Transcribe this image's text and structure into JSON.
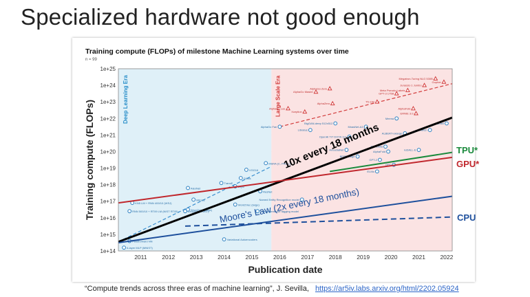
{
  "slide": {
    "title": "Specialized hardware not good enough",
    "citation_text": "“Compute trends across three eras of machine learning”, J. Sevilla,",
    "citation_link": "https://ar5iv.labs.arxiv.org/html/2202.05924"
  },
  "chart_data": {
    "type": "scatter",
    "title": "Training compute (FLOPs) of milestone Machine Learning systems over time",
    "subtitle": "n = 99",
    "xlabel": "Publication date",
    "ylabel": "Training compute (FLOPs)",
    "x_ticks": [
      "2011",
      "2012",
      "2013",
      "2014",
      "2015",
      "2016",
      "2017",
      "2018",
      "2019",
      "2020",
      "2021",
      "2022"
    ],
    "y_ticks": [
      "1e+14",
      "1e+15",
      "1e+16",
      "1e+17",
      "1e+18",
      "1e+19",
      "1e+20",
      "1e+21",
      "1e+22",
      "1e+23",
      "1e+24",
      "1e+25"
    ],
    "xlim": [
      2010.2,
      2022.2
    ],
    "ylim_log10": [
      14,
      25
    ],
    "eras": [
      {
        "name": "Deep Learning Era",
        "x_range": [
          2010.2,
          2015.7
        ],
        "color": "#dff0f8"
      },
      {
        "name": "Large Scale Era",
        "x_range": [
          2015.7,
          2022.2
        ],
        "color": "#fbe3e3"
      }
    ],
    "points_deep_learning": [
      {
        "x": 2010.4,
        "y": 14.2,
        "label": "6-layer MLP (MNIST)"
      },
      {
        "x": 2010.6,
        "y": 14.6,
        "label": "Feedforward NN"
      },
      {
        "x": 2010.6,
        "y": 16.4,
        "label": "RNN 500/10 + RT09 LM (NIST RT05)"
      },
      {
        "x": 2010.7,
        "y": 16.9,
        "label": "KN5 LM + RNN 400/10 (WSJ)"
      },
      {
        "x": 2012.6,
        "y": 16.4,
        "label": "Dropout (MNIST)"
      },
      {
        "x": 2012.7,
        "y": 16.5,
        "label": "Word2Vec (large)"
      },
      {
        "x": 2012.9,
        "y": 17.1,
        "label": "Mitosis"
      },
      {
        "x": 2012.7,
        "y": 17.8,
        "label": "AlexNet"
      },
      {
        "x": 2013.9,
        "y": 18.1,
        "label": "TransE"
      },
      {
        "x": 2014.4,
        "y": 17.9,
        "label": "DQN"
      },
      {
        "x": 2014.4,
        "y": 16.8,
        "label": "Word2Vec (large)"
      },
      {
        "x": 2014.6,
        "y": 18.4,
        "label": "GANs"
      },
      {
        "x": 2014.8,
        "y": 18.9,
        "label": "VGG16"
      },
      {
        "x": 2014.0,
        "y": 14.7,
        "label": "Variational Autoencoders"
      },
      {
        "x": 2015.2,
        "y": 16.4,
        "label": "Part-of-sentence tagging model"
      },
      {
        "x": 2015.3,
        "y": 17.6,
        "label": "ResNet"
      },
      {
        "x": 2015.5,
        "y": 19.3,
        "label": "MSRA (C, PReLU)"
      }
    ],
    "points_large_scale": [
      {
        "x": 2016.0,
        "y": 21.5,
        "label": "AlphaGo Fan"
      },
      {
        "x": 2016.3,
        "y": 22.6,
        "label": "AlphaGo Lee"
      },
      {
        "x": 2017.3,
        "y": 23.6,
        "label": "AlphaGo Master"
      },
      {
        "x": 2017.8,
        "y": 23.8,
        "label": "AlphaGo Zero"
      },
      {
        "x": 2017.9,
        "y": 22.9,
        "label": "AlphaZero"
      },
      {
        "x": 2016.9,
        "y": 22.4,
        "label": "Xception"
      },
      {
        "x": 2017.1,
        "y": 21.3,
        "label": "Libratus"
      },
      {
        "x": 2018.0,
        "y": 21.7,
        "label": "BigGAN-deep 512x512"
      },
      {
        "x": 2018.5,
        "y": 20.9,
        "label": "OpenAI TI7 DOTA 1v1"
      },
      {
        "x": 2019.1,
        "y": 21.5,
        "label": "MnasNet-A3"
      },
      {
        "x": 2019.5,
        "y": 23.0,
        "label": "T5-11B"
      },
      {
        "x": 2020.2,
        "y": 23.5,
        "label": "GPT-3 175B"
      },
      {
        "x": 2020.6,
        "y": 23.7,
        "label": "Meta Pseudo Labels"
      },
      {
        "x": 2021.2,
        "y": 24.0,
        "label": "Jurassic-1 Jumbo"
      },
      {
        "x": 2021.6,
        "y": 24.4,
        "label": "Megatron-Turing NLG 530B"
      },
      {
        "x": 2021.9,
        "y": 24.2,
        "label": "Gopher"
      },
      {
        "x": 2020.8,
        "y": 22.6,
        "label": "AlphaFold"
      },
      {
        "x": 2020.9,
        "y": 22.3,
        "label": "ERNIE 3.0"
      },
      {
        "x": 2020.2,
        "y": 22.0,
        "label": "Meena"
      },
      {
        "x": 2020.5,
        "y": 21.1,
        "label": "ALBERT-xxlarge"
      },
      {
        "x": 2019.8,
        "y": 20.3,
        "label": "Chinchilla"
      },
      {
        "x": 2019.6,
        "y": 19.5,
        "label": "GPT-2"
      },
      {
        "x": 2018.8,
        "y": 19.7,
        "label": "BERT-Large"
      },
      {
        "x": 2018.4,
        "y": 20.1,
        "label": "AmoebaNet"
      },
      {
        "x": 2019.9,
        "y": 20.0,
        "label": "AlphaFold"
      },
      {
        "x": 2021.0,
        "y": 20.1,
        "label": "ruDALL-E"
      },
      {
        "x": 2021.4,
        "y": 21.3,
        "label": "Switch"
      },
      {
        "x": 2022.0,
        "y": 21.7,
        "label": "GLaM"
      },
      {
        "x": 2020.1,
        "y": 19.2,
        "label": "GPT"
      },
      {
        "x": 2019.5,
        "y": 18.8,
        "label": "ELMo"
      },
      {
        "x": 2016.8,
        "y": 17.1,
        "label": "Named Entity Recognition model"
      }
    ],
    "trend_lines": [
      {
        "name": "10x every 18 months",
        "color": "#000000",
        "style": "solid",
        "x": [
          2010.2,
          2022.2
        ],
        "y": [
          14.55,
          22.05
        ]
      },
      {
        "name": "Moore's Law (2x every 18 months)",
        "color": "#1d4f9c",
        "style": "solid",
        "x": [
          2010.2,
          2022.2
        ],
        "y": [
          14.5,
          17.3
        ]
      },
      {
        "name": "GPU*",
        "color": "#c0272d",
        "style": "solid",
        "x": [
          2010.2,
          2022.2
        ],
        "y": [
          16.9,
          19.65
        ]
      },
      {
        "name": "TPU*",
        "color": "#1a8a3c",
        "style": "solid",
        "x": [
          2017.8,
          2022.2
        ],
        "y": [
          18.8,
          19.95
        ]
      },
      {
        "name": "CPU",
        "color": "#1d4f9c",
        "style": "dashed",
        "x": [
          2012.6,
          2022.2
        ],
        "y": [
          15.5,
          16.05
        ]
      }
    ],
    "era_fit_lines": [
      {
        "name": "Deep Learning trend",
        "color": "#3a8fd0",
        "style": "dashed",
        "x": [
          2010.2,
          2015.7
        ],
        "y": [
          14.55,
          19.1
        ]
      },
      {
        "name": "Large Scale trend",
        "color": "#d23a3a",
        "style": "dashed",
        "x": [
          2016.0,
          2022.2
        ],
        "y": [
          21.5,
          24.1
        ]
      }
    ],
    "annotations": [
      {
        "text": "10x every 18 months",
        "color": "#000000"
      },
      {
        "text": "Moore's Law (2x every 18 months)",
        "color": "#1d4f9c"
      },
      {
        "text": "TPU*",
        "color": "#1a8a3c"
      },
      {
        "text": "GPU*",
        "color": "#c0272d"
      },
      {
        "text": "CPU",
        "color": "#1d4f9c"
      }
    ]
  }
}
